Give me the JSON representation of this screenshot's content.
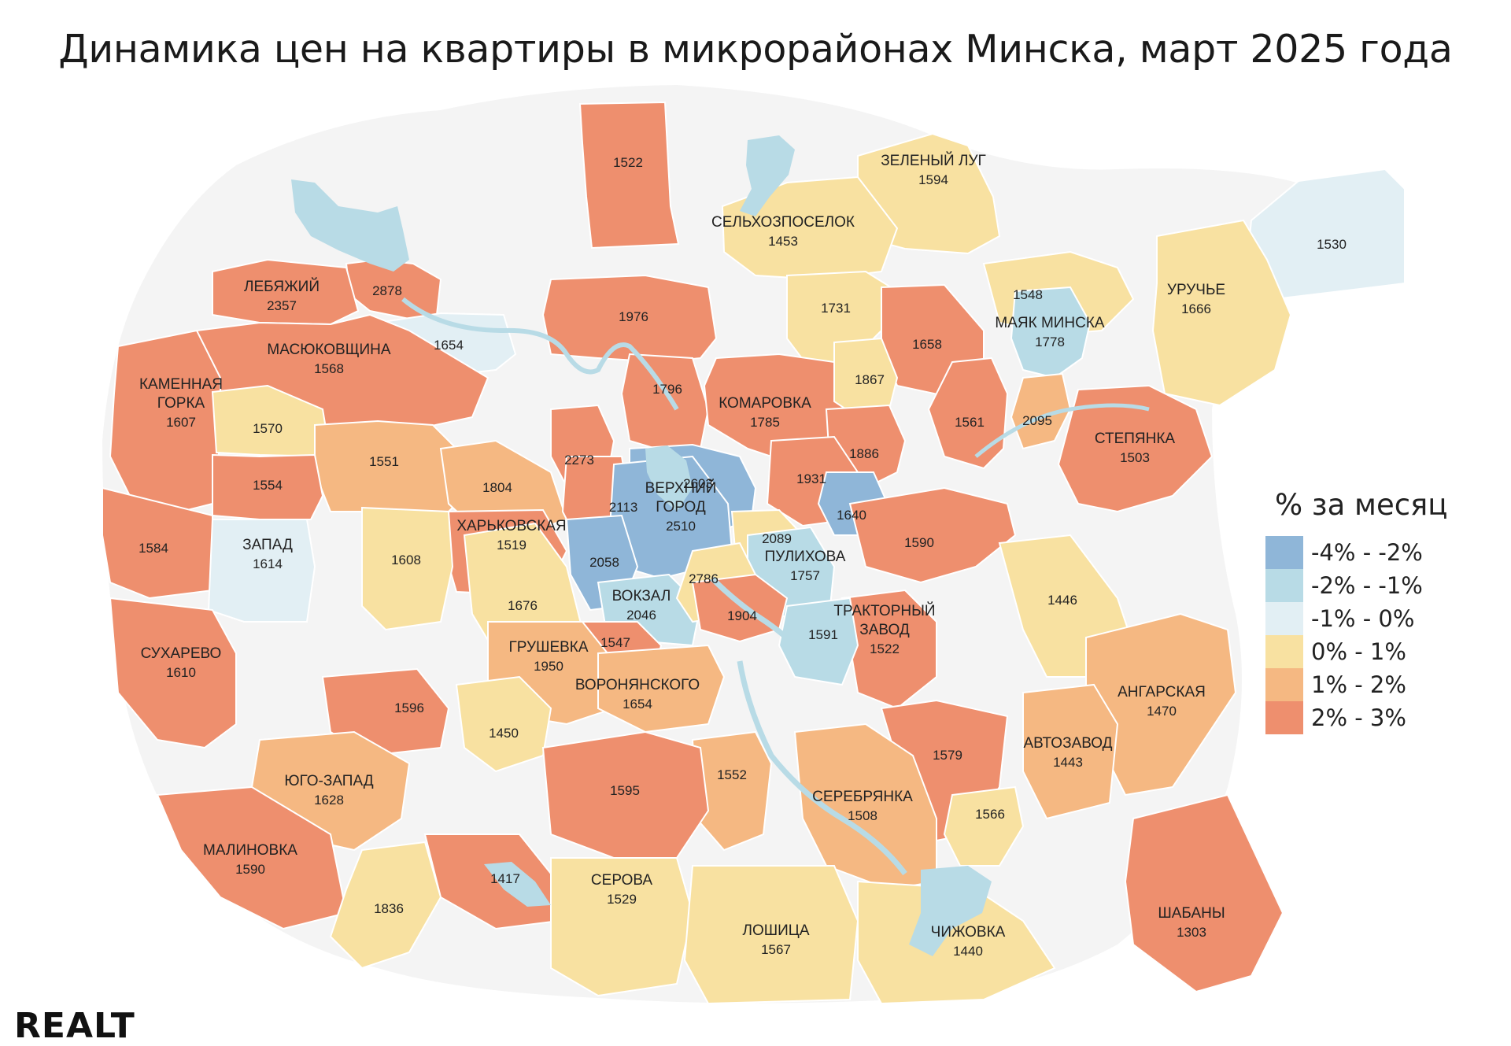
{
  "title": "Динамика цен на квартиры в микрорайонах Минска, март 2025 года",
  "legend": {
    "title": "% за месяц",
    "items": [
      {
        "label": "-4% - -2%",
        "color": "#8fb6d8"
      },
      {
        "label": "-2% - -1%",
        "color": "#b8dbe6"
      },
      {
        "label": "-1% - 0%",
        "color": "#e2eff4"
      },
      {
        "label": "0% - 1%",
        "color": "#f8e1a1"
      },
      {
        "label": "1% - 2%",
        "color": "#f5b882"
      },
      {
        "label": "2% - 3%",
        "color": "#ee8f6e"
      }
    ]
  },
  "colors": {
    "background": "#f4f4f4",
    "water": "#b8dbe6"
  },
  "districts": [
    {
      "name": "",
      "price": "1522",
      "cls": 5
    },
    {
      "name": "ЗЕЛЕНЫЙ ЛУГ",
      "price": "1594",
      "cls": 3
    },
    {
      "name": "СЕЛЬХОЗПОСЕЛОК",
      "price": "1453",
      "cls": 3
    },
    {
      "name": "",
      "price": "1530",
      "cls": 2
    },
    {
      "name": "",
      "price": "2878",
      "cls": 5
    },
    {
      "name": "ЛЕБЯЖИЙ",
      "price": "2357",
      "cls": 5
    },
    {
      "name": "",
      "price": "1654",
      "cls": 2
    },
    {
      "name": "МАСЮКОВЩИНА",
      "price": "1568",
      "cls": 5
    },
    {
      "name": "",
      "price": "1976",
      "cls": 5
    },
    {
      "name": "",
      "price": "1731",
      "cls": 3
    },
    {
      "name": "",
      "price": "1548",
      "cls": 3
    },
    {
      "name": "УРУЧЬЕ",
      "price": "1666",
      "cls": 3
    },
    {
      "name": "МАЯК МИНСКА",
      "price": "1778",
      "cls": 1
    },
    {
      "name": "",
      "price": "1658",
      "cls": 5
    },
    {
      "name": "КАМЕННАЯ ГОРКА",
      "price": "1607",
      "cls": 5
    },
    {
      "name": "",
      "price": "1570",
      "cls": 3
    },
    {
      "name": "",
      "price": "1796",
      "cls": 5
    },
    {
      "name": "КОМАРОВКА",
      "price": "1785",
      "cls": 5
    },
    {
      "name": "",
      "price": "1867",
      "cls": 3
    },
    {
      "name": "",
      "price": "1561",
      "cls": 5
    },
    {
      "name": "",
      "price": "2095",
      "cls": 4
    },
    {
      "name": "СТЕПЯНКА",
      "price": "1503",
      "cls": 5
    },
    {
      "name": "",
      "price": "1551",
      "cls": 4
    },
    {
      "name": "",
      "price": "1554",
      "cls": 5
    },
    {
      "name": "",
      "price": "2273",
      "cls": 5
    },
    {
      "name": "",
      "price": "2603",
      "cls": 0
    },
    {
      "name": "",
      "price": "1886",
      "cls": 5
    },
    {
      "name": "",
      "price": "1931",
      "cls": 5
    },
    {
      "name": "",
      "price": "1804",
      "cls": 4
    },
    {
      "name": "",
      "price": "2113",
      "cls": 5
    },
    {
      "name": "ВЕРХНИЙ ГОРОД",
      "price": "2510",
      "cls": 0
    },
    {
      "name": "",
      "price": "1640",
      "cls": 0
    },
    {
      "name": "ХАРЬКОВСКАЯ",
      "price": "1519",
      "cls": 5
    },
    {
      "name": "",
      "price": "2089",
      "cls": 3
    },
    {
      "name": "",
      "price": "1590",
      "cls": 5
    },
    {
      "name": "",
      "price": "1584",
      "cls": 5
    },
    {
      "name": "ЗАПАД",
      "price": "1614",
      "cls": 2
    },
    {
      "name": "",
      "price": "1608",
      "cls": 3
    },
    {
      "name": "",
      "price": "2058",
      "cls": 0
    },
    {
      "name": "ПУЛИХОВА",
      "price": "1757",
      "cls": 1
    },
    {
      "name": "",
      "price": "1676",
      "cls": 3
    },
    {
      "name": "ВОКЗАЛ",
      "price": "2046",
      "cls": 1
    },
    {
      "name": "",
      "price": "2786",
      "cls": 3
    },
    {
      "name": "",
      "price": "1446",
      "cls": 3
    },
    {
      "name": "",
      "price": "1904",
      "cls": 5
    },
    {
      "name": "ТРАКТОРНЫЙ ЗАВОД",
      "price": "1522",
      "cls": 5
    },
    {
      "name": "",
      "price": "1591",
      "cls": 1
    },
    {
      "name": "СУХАРЕВО",
      "price": "1610",
      "cls": 5
    },
    {
      "name": "",
      "price": "1547",
      "cls": 5
    },
    {
      "name": "ГРУШЕВКА",
      "price": "1950",
      "cls": 4
    },
    {
      "name": "ВОРОНЯНСКОГО",
      "price": "1654",
      "cls": 4
    },
    {
      "name": "АНГАРСКАЯ",
      "price": "1470",
      "cls": 4
    },
    {
      "name": "",
      "price": "1596",
      "cls": 5
    },
    {
      "name": "",
      "price": "1450",
      "cls": 3
    },
    {
      "name": "АВТОЗАВОД",
      "price": "1443",
      "cls": 4
    },
    {
      "name": "",
      "price": "1579",
      "cls": 5
    },
    {
      "name": "ЮГО-ЗАПАД",
      "price": "1628",
      "cls": 4
    },
    {
      "name": "",
      "price": "1552",
      "cls": 4
    },
    {
      "name": "",
      "price": "1595",
      "cls": 5
    },
    {
      "name": "СЕРЕБРЯНКА",
      "price": "1508",
      "cls": 4
    },
    {
      "name": "",
      "price": "1566",
      "cls": 3
    },
    {
      "name": "МАЛИНОВКА",
      "price": "1590",
      "cls": 5
    },
    {
      "name": "",
      "price": "1417",
      "cls": 5
    },
    {
      "name": "ШАБАНЫ",
      "price": "1303",
      "cls": 5
    },
    {
      "name": "",
      "price": "1836",
      "cls": 3
    },
    {
      "name": "СЕРОВА",
      "price": "1529",
      "cls": 3
    },
    {
      "name": "ЛОШИЦА",
      "price": "1567",
      "cls": 3
    },
    {
      "name": "ЧИЖОВКА",
      "price": "1440",
      "cls": 3
    }
  ],
  "logo": "REALT"
}
